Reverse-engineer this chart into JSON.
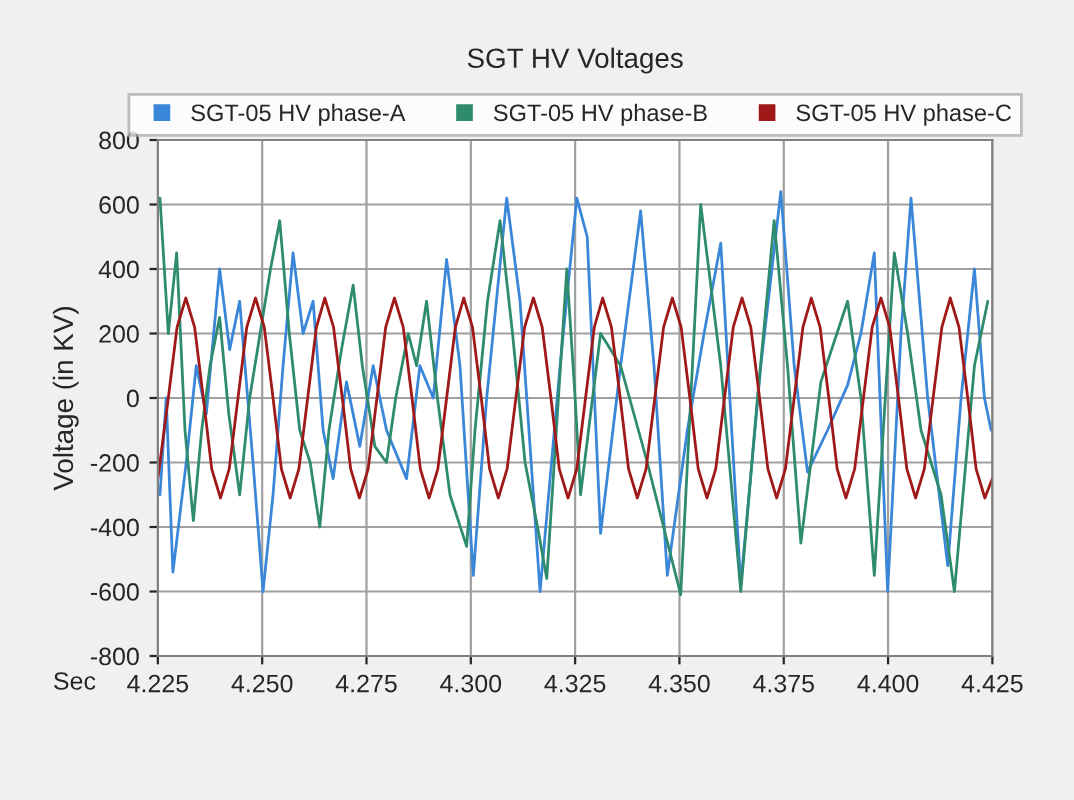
{
  "chart_data": {
    "type": "line",
    "title": "SGT HV Voltages",
    "xlabel": "Sec",
    "ylabel": "Voltage (in KV)",
    "xlim": [
      4.225,
      4.425
    ],
    "xticks": [
      {
        "value": 4.225,
        "label": "4.225"
      },
      {
        "value": 4.25,
        "label": "4.250"
      },
      {
        "value": 4.275,
        "label": "4.275"
      },
      {
        "value": 4.3,
        "label": "4.300"
      },
      {
        "value": 4.325,
        "label": "4.325"
      },
      {
        "value": 4.35,
        "label": "4.350"
      },
      {
        "value": 4.375,
        "label": "4.375"
      },
      {
        "value": 4.4,
        "label": "4.400"
      },
      {
        "value": 4.425,
        "label": "4.425"
      }
    ],
    "ylim": [
      -800,
      800
    ],
    "yticks": [
      -800,
      -600,
      -400,
      -200,
      0,
      200,
      400,
      600,
      800
    ],
    "grid": true,
    "legend": "top",
    "marker": "none",
    "line_style": "solid",
    "series": [
      {
        "name": "SGT-05 HV phase-A",
        "color": "#3a86d8",
        "x": [
          4.2255,
          4.227,
          4.2286,
          4.2318,
          4.2342,
          4.2366,
          4.2398,
          4.2422,
          4.2446,
          4.2478,
          4.2502,
          4.2526,
          4.255,
          4.2574,
          4.2598,
          4.2622,
          4.2646,
          4.267,
          4.2702,
          4.2734,
          4.2766,
          4.2798,
          4.2846,
          4.2878,
          4.291,
          4.2942,
          4.2974,
          4.3006,
          4.3038,
          4.3086,
          4.3118,
          4.3166,
          4.3214,
          4.3254,
          4.3279,
          4.3311,
          4.3359,
          4.3407,
          4.3439,
          4.3471,
          4.3519,
          4.3559,
          4.3599,
          4.3647,
          4.3695,
          4.3743,
          4.3775,
          4.3807,
          4.3855,
          4.3903,
          4.3935,
          4.3967,
          4.3999,
          4.4031,
          4.4055,
          4.4095,
          4.4143,
          4.4175,
          4.4207,
          4.4231,
          4.4247
        ],
        "values": [
          -300,
          0,
          -540,
          -200,
          100,
          -50,
          400,
          150,
          300,
          -200,
          -600,
          -300,
          100,
          450,
          200,
          300,
          -100,
          -250,
          50,
          -150,
          100,
          -100,
          -250,
          100,
          0,
          430,
          100,
          -550,
          0,
          620,
          300,
          -600,
          100,
          620,
          500,
          -420,
          100,
          580,
          100,
          -550,
          -100,
          200,
          480,
          -580,
          100,
          640,
          100,
          -230,
          -100,
          40,
          200,
          450,
          -600,
          200,
          620,
          0,
          -520,
          0,
          400,
          0,
          -100
        ]
      },
      {
        "name": "SGT-05 HV phase-B",
        "color": "#2e8b6e",
        "x": [
          4.2255,
          4.2275,
          4.2295,
          4.2315,
          4.2335,
          4.2355,
          4.2375,
          4.2398,
          4.242,
          4.2446,
          4.247,
          4.2495,
          4.252,
          4.2542,
          4.2565,
          4.259,
          4.2615,
          4.2638,
          4.266,
          4.269,
          4.2718,
          4.274,
          4.277,
          4.2798,
          4.282,
          4.285,
          4.287,
          4.2894,
          4.292,
          4.295,
          4.299,
          4.301,
          4.304,
          4.307,
          4.31,
          4.313,
          4.316,
          4.3182,
          4.3205,
          4.323,
          4.325,
          4.3263,
          4.3311,
          4.3359,
          4.3423,
          4.3503,
          4.3551,
          4.3599,
          4.3647,
          4.3687,
          4.3727,
          4.3759,
          4.3791,
          4.3839,
          4.3903,
          4.3935,
          4.3967,
          4.4015,
          4.4047,
          4.4079,
          4.4127,
          4.4159,
          4.4207,
          4.4239
        ],
        "values": [
          620,
          200,
          450,
          -100,
          -380,
          -100,
          100,
          250,
          -50,
          -300,
          0,
          200,
          400,
          550,
          200,
          -100,
          -200,
          -400,
          -100,
          150,
          350,
          100,
          -150,
          -200,
          0,
          200,
          100,
          300,
          0,
          -300,
          -460,
          -100,
          300,
          550,
          200,
          -200,
          -400,
          -560,
          -100,
          400,
          0,
          -300,
          200,
          100,
          -200,
          -610,
          600,
          100,
          -600,
          0,
          550,
          100,
          -450,
          50,
          300,
          0,
          -550,
          450,
          200,
          -100,
          -300,
          -600,
          100,
          300
        ]
      },
      {
        "name": "SGT-05 HV phase-C",
        "color": "#a01818",
        "x": [
          4.225,
          4.2275,
          4.2296,
          4.2317,
          4.2338,
          4.2359,
          4.2379,
          4.24,
          4.2421,
          4.2442,
          4.2463,
          4.2484,
          4.2505,
          4.2526,
          4.2546,
          4.2567,
          4.2588,
          4.2609,
          4.263,
          4.265,
          4.2671,
          4.2692,
          4.2712,
          4.2733,
          4.2754,
          4.2775,
          4.2796,
          4.2817,
          4.2838,
          4.2859,
          4.2879,
          4.29,
          4.2921,
          4.2942,
          4.2963,
          4.2983,
          4.3004,
          4.3025,
          4.3045,
          4.3066,
          4.3087,
          4.3108,
          4.3129,
          4.315,
          4.3171,
          4.3192,
          4.3212,
          4.3233,
          4.3254,
          4.3275,
          4.3296,
          4.3316,
          4.3337,
          4.3358,
          4.3378,
          4.3399,
          4.342,
          4.3441,
          4.3462,
          4.3483,
          4.3504,
          4.3525,
          4.3545,
          4.3566,
          4.3587,
          4.3608,
          4.3629,
          4.365,
          4.3671,
          4.3692,
          4.3712,
          4.3733,
          4.3754,
          4.3775,
          4.3796,
          4.3816,
          4.3837,
          4.3858,
          4.3878,
          4.3899,
          4.392,
          4.3941,
          4.3962,
          4.3983,
          4.4004,
          4.4025,
          4.4045,
          4.4066,
          4.4087,
          4.4108,
          4.4129,
          4.4149,
          4.417,
          4.4191,
          4.4211,
          4.4232,
          4.425
        ],
        "values": [
          -250,
          0,
          220,
          310,
          220,
          0,
          -220,
          -310,
          -220,
          0,
          220,
          310,
          220,
          0,
          -220,
          -310,
          -220,
          0,
          220,
          310,
          220,
          0,
          -220,
          -310,
          -220,
          0,
          220,
          310,
          220,
          0,
          -220,
          -310,
          -220,
          0,
          220,
          310,
          220,
          0,
          -220,
          -310,
          -220,
          0,
          220,
          310,
          220,
          0,
          -220,
          -310,
          -220,
          0,
          220,
          310,
          220,
          0,
          -220,
          -310,
          -220,
          0,
          220,
          310,
          220,
          0,
          -220,
          -310,
          -220,
          0,
          220,
          310,
          220,
          0,
          -220,
          -310,
          -220,
          0,
          220,
          310,
          220,
          0,
          -220,
          -310,
          -220,
          0,
          220,
          310,
          220,
          0,
          -220,
          -310,
          -220,
          0,
          220,
          310,
          220,
          0,
          -220,
          -310,
          -250
        ]
      }
    ]
  }
}
